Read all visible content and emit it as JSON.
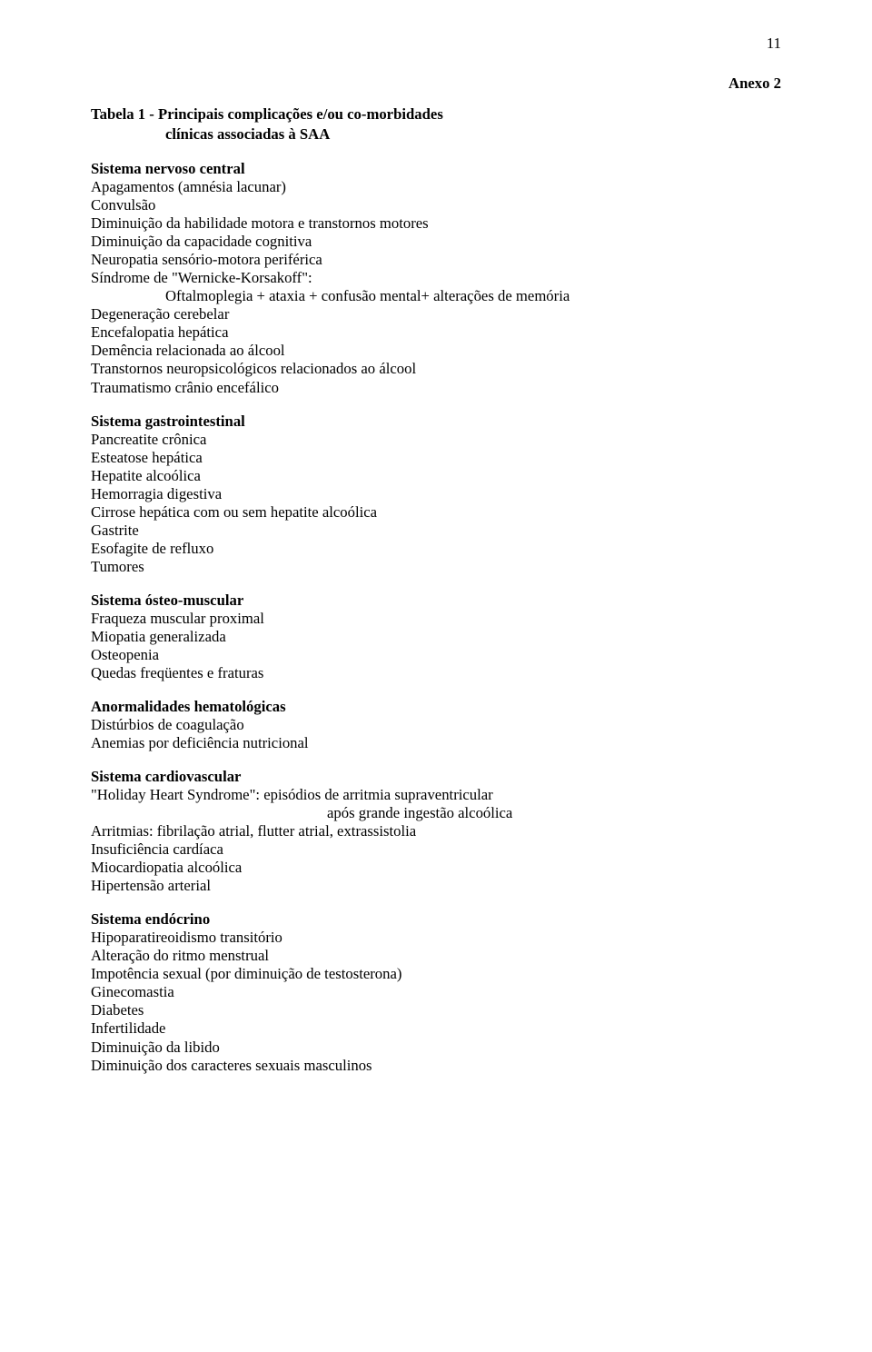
{
  "page_number": "11",
  "anexo_label": "Anexo 2",
  "tabela_title": "Tabela 1 - Principais complicações e/ou co-morbidades",
  "tabela_subtitle": "clínicas associadas à SAA",
  "sections": {
    "nervoso": {
      "heading": "Sistema nervoso central",
      "items": {
        "i0": "Apagamentos (amnésia lacunar)",
        "i1": "Convulsão",
        "i2": "Diminuição da habilidade motora e transtornos motores",
        "i3": "Diminuição da capacidade cognitiva",
        "i4": "Neuropatia sensório-motora periférica",
        "i5": "Síndrome de \"Wernicke-Korsakoff\":",
        "i6": "Oftalmoplegia + ataxia + confusão mental+ alterações de memória",
        "i7": "Degeneração cerebelar",
        "i8": "Encefalopatia hepática",
        "i9": "Demência relacionada ao álcool",
        "i10": "Transtornos neuropsicológicos relacionados ao álcool",
        "i11": "Traumatismo crânio encefálico"
      }
    },
    "gastro": {
      "heading": "Sistema gastrointestinal",
      "items": {
        "i0": "Pancreatite crônica",
        "i1": "Esteatose hepática",
        "i2": "Hepatite alcoólica",
        "i3": "Hemorragia digestiva",
        "i4": "Cirrose hepática com ou sem hepatite alcoólica",
        "i5": "Gastrite",
        "i6": "Esofagite de refluxo",
        "i7": "Tumores"
      }
    },
    "osteo": {
      "heading": "Sistema ósteo-muscular",
      "items": {
        "i0": "Fraqueza muscular proximal",
        "i1": "Miopatia generalizada",
        "i2": "Osteopenia",
        "i3": "Quedas freqüentes e fraturas"
      }
    },
    "hemato": {
      "heading": "Anormalidades hematológicas",
      "items": {
        "i0": "Distúrbios de coagulação",
        "i1": "Anemias por deficiência nutricional"
      }
    },
    "cardio": {
      "heading": "Sistema cardiovascular",
      "items": {
        "i0": "\"Holiday Heart Syndrome\": episódios de arritmia supraventricular",
        "i1": "após grande ingestão alcoólica",
        "i2": "Arritmias: fibrilação atrial, flutter atrial, extrassistolia",
        "i3": "Insuficiência cardíaca",
        "i4": "Miocardiopatia alcoólica",
        "i5": "Hipertensão arterial"
      }
    },
    "endocrino": {
      "heading": "Sistema endócrino",
      "items": {
        "i0": "Hipoparatireoidismo transitório",
        "i1": "Alteração do ritmo menstrual",
        "i2": "Impotência sexual (por diminuição de testosterona)",
        "i3": "Ginecomastia",
        "i4": "Diabetes",
        "i5": "Infertilidade",
        "i6": "Diminuição da libido",
        "i7": "Diminuição dos caracteres sexuais masculinos"
      }
    }
  }
}
